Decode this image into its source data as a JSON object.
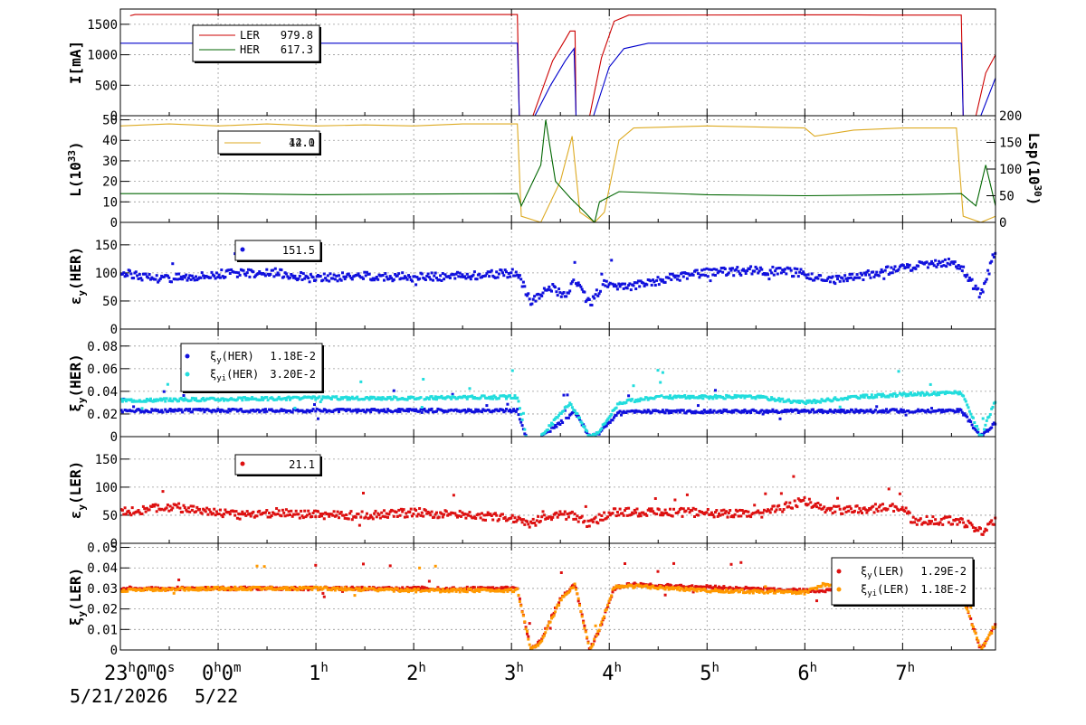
{
  "chart_data": {
    "type": "line",
    "time_axis": {
      "tick_labels": [
        "23",
        "0",
        "1",
        "2",
        "3",
        "4",
        "5",
        "6",
        "7"
      ],
      "first_label": {
        "h": "23",
        "m": "0",
        "s": "0"
      },
      "second_label": {
        "h": "0",
        "m": "0"
      },
      "hour_sup": "h",
      "min_sup": "m",
      "sec_sup": "s",
      "date_main": "5/21/2026",
      "date_next": "5/22",
      "range_hours": [
        -1.0,
        7.95
      ]
    },
    "panels": [
      {
        "id": "current",
        "ylabel_main": "I",
        "ylabel_unit": "[mA]",
        "ylim": [
          0,
          1750
        ],
        "yticks": [
          0,
          500,
          1000,
          1500
        ],
        "series": [
          {
            "name": "LER",
            "value": "979.8",
            "color": "#cc0000",
            "points": [
              [
                -0.9,
                1640
              ],
              [
                -0.85,
                1660
              ],
              [
                3.06,
                1660
              ],
              [
                3.08,
                0
              ],
              [
                3.22,
                0
              ],
              [
                3.42,
                900
              ],
              [
                3.55,
                1250
              ],
              [
                3.6,
                1390
              ],
              [
                3.65,
                1390
              ],
              [
                3.66,
                0
              ],
              [
                3.8,
                0
              ],
              [
                3.92,
                950
              ],
              [
                4.05,
                1550
              ],
              [
                4.2,
                1650
              ],
              [
                6.5,
                1655
              ],
              [
                6.8,
                1650
              ],
              [
                7.6,
                1650
              ],
              [
                7.62,
                0
              ],
              [
                7.75,
                0
              ],
              [
                7.85,
                700
              ],
              [
                7.95,
                1000
              ]
            ]
          },
          {
            "name": "HER",
            "value": "617.3",
            "color": "#0000cc",
            "points": [
              [
                -1.0,
                1190
              ],
              [
                3.06,
                1190
              ],
              [
                3.08,
                0
              ],
              [
                3.24,
                0
              ],
              [
                3.4,
                500
              ],
              [
                3.55,
                900
              ],
              [
                3.64,
                1100
              ],
              [
                3.66,
                0
              ],
              [
                3.84,
                0
              ],
              [
                4.0,
                800
              ],
              [
                4.15,
                1100
              ],
              [
                4.4,
                1190
              ],
              [
                7.6,
                1190
              ],
              [
                7.62,
                0
              ],
              [
                7.8,
                0
              ],
              [
                7.95,
                620
              ]
            ]
          }
        ]
      },
      {
        "id": "lumi",
        "ylabel_main": "L(10",
        "ylabel_sup": "33",
        "ylabel_close": ")",
        "ylim": [
          0,
          52
        ],
        "yticks": [
          0,
          10,
          20,
          30,
          40,
          50
        ],
        "y2label_main": "Lsp(10",
        "y2label_sup": "30",
        "y2label_close": ")",
        "y2lim": [
          0,
          200
        ],
        "y2ticks": [
          0,
          50,
          100,
          150,
          200
        ],
        "legend_value_a": "12.0",
        "legend_value_b": "44.1",
        "series": [
          {
            "name": "Lsp",
            "color": "#ddaa22",
            "points": [
              [
                -1.0,
                47
              ],
              [
                -0.5,
                48
              ],
              [
                0.0,
                47
              ],
              [
                0.5,
                48
              ],
              [
                1.0,
                47
              ],
              [
                1.5,
                47.5
              ],
              [
                2.0,
                47
              ],
              [
                2.5,
                48
              ],
              [
                3.06,
                48
              ],
              [
                3.1,
                3
              ],
              [
                3.3,
                0
              ],
              [
                3.5,
                20
              ],
              [
                3.62,
                42
              ],
              [
                3.7,
                5
              ],
              [
                3.85,
                0
              ],
              [
                3.95,
                5
              ],
              [
                4.1,
                40
              ],
              [
                4.25,
                46
              ],
              [
                5.0,
                47
              ],
              [
                6.0,
                46
              ],
              [
                6.1,
                42
              ],
              [
                6.5,
                45
              ],
              [
                7.0,
                46
              ],
              [
                7.55,
                46
              ],
              [
                7.62,
                3
              ],
              [
                7.8,
                0
              ],
              [
                7.95,
                3
              ]
            ]
          },
          {
            "name": "L",
            "color": "#006600",
            "points": [
              [
                -1.0,
                14
              ],
              [
                0.0,
                14
              ],
              [
                1.0,
                13.5
              ],
              [
                2.0,
                13.8
              ],
              [
                3.06,
                14
              ],
              [
                3.1,
                8
              ],
              [
                3.3,
                28
              ],
              [
                3.35,
                50
              ],
              [
                3.45,
                20
              ],
              [
                3.6,
                12
              ],
              [
                3.75,
                5
              ],
              [
                3.85,
                0
              ],
              [
                3.9,
                10
              ],
              [
                4.1,
                15
              ],
              [
                5.0,
                13.5
              ],
              [
                6.0,
                13
              ],
              [
                7.0,
                13.5
              ],
              [
                7.6,
                14
              ],
              [
                7.75,
                8
              ],
              [
                7.85,
                28
              ],
              [
                7.95,
                8
              ]
            ]
          }
        ]
      },
      {
        "id": "sigma_her",
        "ylabel_main": "ε",
        "ylabel_sub": "y",
        "ylabel_close": "(HER)",
        "ylim": [
          0,
          190
        ],
        "yticks": [
          0,
          50,
          100,
          150
        ],
        "legend_value": "151.5",
        "series": [
          {
            "name": "",
            "color": "#1111dd",
            "points": [
              [
                -1.0,
                100
              ],
              [
                -0.6,
                90
              ],
              [
                -0.2,
                95
              ],
              [
                0.2,
                100
              ],
              [
                0.6,
                100
              ],
              [
                1.0,
                90
              ],
              [
                1.5,
                95
              ],
              [
                2.0,
                92
              ],
              [
                2.5,
                95
              ],
              [
                3.06,
                100
              ],
              [
                3.2,
                50
              ],
              [
                3.4,
                75
              ],
              [
                3.55,
                60
              ],
              [
                3.65,
                85
              ],
              [
                3.8,
                45
              ],
              [
                3.95,
                80
              ],
              [
                4.2,
                75
              ],
              [
                4.6,
                90
              ],
              [
                5.0,
                100
              ],
              [
                5.5,
                105
              ],
              [
                6.0,
                100
              ],
              [
                6.2,
                85
              ],
              [
                6.6,
                95
              ],
              [
                7.0,
                110
              ],
              [
                7.5,
                120
              ],
              [
                7.6,
                110
              ],
              [
                7.8,
                60
              ],
              [
                7.95,
                140
              ]
            ]
          }
        ]
      },
      {
        "id": "xi_her",
        "ylabel_main": "ξ",
        "ylabel_sub": "y",
        "ylabel_close": "(HER)",
        "ylim": [
          0,
          0.095
        ],
        "yticks": [
          0,
          0.02,
          0.04,
          0.06,
          0.08
        ],
        "ytick_labels": [
          "0",
          "0.02",
          "0.04",
          "0.06",
          "0.08"
        ],
        "series": [
          {
            "name": "ξ",
            "name_sub": "y",
            "name_close": "(HER)",
            "value": "1.18E-2",
            "color": "#1111dd",
            "points": [
              [
                -1.0,
                0.023
              ],
              [
                3.06,
                0.023
              ],
              [
                3.15,
                0
              ],
              [
                3.3,
                0
              ],
              [
                3.5,
                0.012
              ],
              [
                3.65,
                0.022
              ],
              [
                3.8,
                0
              ],
              [
                3.9,
                0.003
              ],
              [
                4.1,
                0.022
              ],
              [
                7.6,
                0.023
              ],
              [
                7.8,
                0
              ],
              [
                7.95,
                0.012
              ]
            ]
          },
          {
            "name": "ξ",
            "name_sub": "yi",
            "name_close": "(HER)",
            "value": "3.20E-2",
            "color": "#22dddd",
            "points": [
              [
                -1.0,
                0.032
              ],
              [
                0.0,
                0.033
              ],
              [
                1.0,
                0.034
              ],
              [
                2.0,
                0.034
              ],
              [
                3.06,
                0.035
              ],
              [
                3.15,
                0
              ],
              [
                3.3,
                0
              ],
              [
                3.45,
                0.015
              ],
              [
                3.6,
                0.03
              ],
              [
                3.8,
                0
              ],
              [
                3.9,
                0.005
              ],
              [
                4.1,
                0.03
              ],
              [
                4.5,
                0.035
              ],
              [
                5.5,
                0.035
              ],
              [
                6.0,
                0.03
              ],
              [
                6.5,
                0.035
              ],
              [
                7.0,
                0.037
              ],
              [
                7.6,
                0.039
              ],
              [
                7.8,
                0
              ],
              [
                7.95,
                0.032
              ]
            ]
          }
        ]
      },
      {
        "id": "sigma_ler",
        "ylabel_main": "ε",
        "ylabel_sub": "y",
        "ylabel_close": "(LER)",
        "ylim": [
          0,
          190
        ],
        "yticks": [
          0,
          50,
          100,
          150
        ],
        "legend_value": "21.1",
        "series": [
          {
            "name": "",
            "color": "#dd1111",
            "points": [
              [
                -1.0,
                55
              ],
              [
                -0.5,
                65
              ],
              [
                -0.2,
                60
              ],
              [
                0.2,
                50
              ],
              [
                0.6,
                55
              ],
              [
                1.0,
                50
              ],
              [
                1.5,
                50
              ],
              [
                2.0,
                55
              ],
              [
                2.5,
                50
              ],
              [
                3.06,
                45
              ],
              [
                3.2,
                35
              ],
              [
                3.4,
                50
              ],
              [
                3.6,
                50
              ],
              [
                3.8,
                35
              ],
              [
                4.0,
                55
              ],
              [
                4.5,
                55
              ],
              [
                5.0,
                55
              ],
              [
                5.5,
                50
              ],
              [
                6.0,
                75
              ],
              [
                6.2,
                60
              ],
              [
                6.5,
                60
              ],
              [
                7.0,
                65
              ],
              [
                7.1,
                40
              ],
              [
                7.6,
                40
              ],
              [
                7.8,
                20
              ],
              [
                7.95,
                40
              ]
            ]
          }
        ]
      },
      {
        "id": "xi_ler",
        "ylabel_main": "ξ",
        "ylabel_sub": "y",
        "ylabel_close": "(LER)",
        "ylim": [
          0,
          0.052
        ],
        "yticks": [
          0,
          0.01,
          0.02,
          0.03,
          0.04,
          0.05
        ],
        "ytick_labels": [
          "0",
          "0.01",
          "0.02",
          "0.03",
          "0.04",
          "0.05"
        ],
        "series": [
          {
            "name": "ξ",
            "name_sub": "y",
            "name_close": "(LER)",
            "value": "1.29E-2",
            "color": "#dd1111",
            "points": [
              [
                -1.0,
                0.03
              ],
              [
                3.06,
                0.03
              ],
              [
                3.2,
                0
              ],
              [
                3.3,
                0.005
              ],
              [
                3.5,
                0.025
              ],
              [
                3.65,
                0.032
              ],
              [
                3.8,
                0
              ],
              [
                3.9,
                0.01
              ],
              [
                4.05,
                0.03
              ],
              [
                4.2,
                0.032
              ],
              [
                6.0,
                0.029
              ],
              [
                7.6,
                0.029
              ],
              [
                7.8,
                0
              ],
              [
                7.95,
                0.012
              ]
            ]
          },
          {
            "name": "ξ",
            "name_sub": "yi",
            "name_close": "(LER)",
            "value": "1.18E-2",
            "color": "#ff9900",
            "points": [
              [
                -1.0,
                0.029
              ],
              [
                0.0,
                0.03
              ],
              [
                1.0,
                0.03
              ],
              [
                2.0,
                0.029
              ],
              [
                3.06,
                0.029
              ],
              [
                3.2,
                0
              ],
              [
                3.3,
                0.004
              ],
              [
                3.5,
                0.024
              ],
              [
                3.65,
                0.032
              ],
              [
                3.8,
                0
              ],
              [
                3.9,
                0.01
              ],
              [
                4.05,
                0.031
              ],
              [
                4.3,
                0.031
              ],
              [
                5.0,
                0.029
              ],
              [
                6.0,
                0.028
              ],
              [
                6.2,
                0.032
              ],
              [
                7.0,
                0.028
              ],
              [
                7.6,
                0.028
              ],
              [
                7.8,
                0
              ],
              [
                7.95,
                0.012
              ]
            ]
          }
        ]
      }
    ]
  }
}
